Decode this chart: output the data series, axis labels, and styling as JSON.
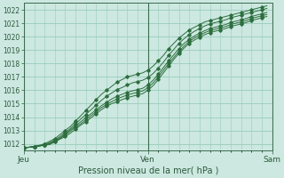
{
  "title": "",
  "xlabel": "Pression niveau de la mer( hPa )",
  "ylabel": "",
  "background_color": "#cce8e0",
  "grid_color": "#99ccbb",
  "line_color": "#2d6e3e",
  "xlim": [
    0,
    48
  ],
  "ylim": [
    1011.5,
    1022.5
  ],
  "yticks": [
    1012,
    1013,
    1014,
    1015,
    1016,
    1017,
    1018,
    1019,
    1020,
    1021,
    1022
  ],
  "xtick_positions": [
    0,
    24,
    48
  ],
  "xtick_labels": [
    "Jeu",
    "Ven",
    "Sam"
  ],
  "series": [
    [
      1011.7,
      1011.75,
      1011.8,
      1011.9,
      1012.0,
      1012.2,
      1012.4,
      1012.7,
      1013.0,
      1013.3,
      1013.7,
      1014.1,
      1014.5,
      1014.9,
      1015.3,
      1015.7,
      1016.0,
      1016.3,
      1016.6,
      1016.8,
      1017.0,
      1017.1,
      1017.2,
      1017.3,
      1017.5,
      1017.8,
      1018.2,
      1018.6,
      1019.1,
      1019.5,
      1019.9,
      1020.2,
      1020.5,
      1020.7,
      1020.9,
      1021.1,
      1021.2,
      1021.3,
      1021.4,
      1021.5,
      1021.6,
      1021.7,
      1021.8,
      1021.9,
      1022.0,
      1022.1,
      1022.2,
      1022.3
    ],
    [
      1011.7,
      1011.75,
      1011.8,
      1011.85,
      1011.95,
      1012.1,
      1012.3,
      1012.55,
      1012.85,
      1013.15,
      1013.5,
      1013.85,
      1014.2,
      1014.55,
      1014.9,
      1015.25,
      1015.55,
      1015.8,
      1016.05,
      1016.2,
      1016.4,
      1016.55,
      1016.65,
      1016.75,
      1016.95,
      1017.25,
      1017.65,
      1018.1,
      1018.6,
      1019.05,
      1019.5,
      1019.85,
      1020.15,
      1020.4,
      1020.6,
      1020.8,
      1020.95,
      1021.05,
      1021.15,
      1021.25,
      1021.4,
      1021.5,
      1021.6,
      1021.7,
      1021.8,
      1021.9,
      1022.0,
      1022.1
    ],
    [
      1011.7,
      1011.75,
      1011.8,
      1011.85,
      1011.9,
      1012.05,
      1012.25,
      1012.45,
      1012.75,
      1013.05,
      1013.35,
      1013.65,
      1013.95,
      1014.25,
      1014.55,
      1014.85,
      1015.1,
      1015.35,
      1015.55,
      1015.7,
      1015.85,
      1015.95,
      1016.05,
      1016.15,
      1016.4,
      1016.75,
      1017.2,
      1017.7,
      1018.2,
      1018.65,
      1019.1,
      1019.5,
      1019.8,
      1020.05,
      1020.25,
      1020.45,
      1020.6,
      1020.7,
      1020.8,
      1020.9,
      1021.05,
      1021.15,
      1021.25,
      1021.35,
      1021.5,
      1021.6,
      1021.7,
      1021.8
    ],
    [
      1011.7,
      1011.75,
      1011.8,
      1011.85,
      1011.9,
      1012.0,
      1012.2,
      1012.4,
      1012.65,
      1012.95,
      1013.25,
      1013.5,
      1013.8,
      1014.1,
      1014.4,
      1014.7,
      1014.95,
      1015.15,
      1015.35,
      1015.5,
      1015.65,
      1015.75,
      1015.85,
      1015.95,
      1016.2,
      1016.55,
      1017.0,
      1017.5,
      1018.0,
      1018.45,
      1018.9,
      1019.3,
      1019.65,
      1019.9,
      1020.1,
      1020.3,
      1020.45,
      1020.55,
      1020.65,
      1020.75,
      1020.9,
      1021.0,
      1021.1,
      1021.2,
      1021.35,
      1021.45,
      1021.55,
      1021.65
    ],
    [
      1011.7,
      1011.75,
      1011.8,
      1011.85,
      1011.9,
      1011.95,
      1012.15,
      1012.35,
      1012.55,
      1012.8,
      1013.1,
      1013.4,
      1013.65,
      1013.95,
      1014.25,
      1014.55,
      1014.8,
      1015.0,
      1015.15,
      1015.3,
      1015.45,
      1015.55,
      1015.65,
      1015.75,
      1016.0,
      1016.35,
      1016.8,
      1017.3,
      1017.8,
      1018.3,
      1018.75,
      1019.15,
      1019.5,
      1019.75,
      1019.95,
      1020.15,
      1020.3,
      1020.4,
      1020.5,
      1020.6,
      1020.75,
      1020.85,
      1020.95,
      1021.05,
      1021.2,
      1021.3,
      1021.4,
      1021.5
    ]
  ]
}
